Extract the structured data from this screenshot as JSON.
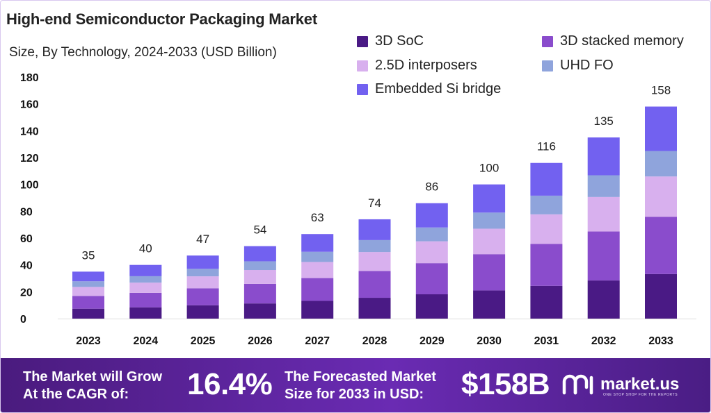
{
  "header": {
    "title": "High-end Semiconductor Packaging Market",
    "subtitle": "Size, By Technology, 2024-2033 (USD Billion)"
  },
  "colors": {
    "3d_soc": "#4a1a85",
    "3d_stacked_memory": "#8a4ccc",
    "interposers": "#d8b0ee",
    "uhd_fo": "#8fa4dc",
    "embedded_si_bridge": "#7261f0"
  },
  "chart_data": {
    "type": "bar",
    "stacked": true,
    "title": "High-end Semiconductor Packaging Market",
    "subtitle": "Size, By Technology, 2024-2033 (USD Billion)",
    "categories": [
      "2023",
      "2024",
      "2025",
      "2026",
      "2027",
      "2028",
      "2029",
      "2030",
      "2031",
      "2032",
      "2033"
    ],
    "totals": [
      35,
      40,
      47,
      54,
      63,
      74,
      86,
      100,
      116,
      135,
      158
    ],
    "series": [
      {
        "name": "3D SoC",
        "color": "#4a1a85",
        "values": [
          7.4,
          8.4,
          9.9,
          11.3,
          13.2,
          15.5,
          18.1,
          21.0,
          24.4,
          28.4,
          33.2
        ]
      },
      {
        "name": "3D stacked memory",
        "color": "#8a4ccc",
        "values": [
          9.5,
          10.8,
          12.7,
          14.6,
          17.0,
          20.0,
          23.2,
          27.0,
          31.3,
          36.5,
          42.7
        ]
      },
      {
        "name": "2.5D interposers",
        "color": "#d8b0ee",
        "values": [
          6.7,
          7.6,
          8.9,
          10.3,
          12.0,
          14.1,
          16.3,
          19.0,
          22.0,
          25.7,
          30.0
        ]
      },
      {
        "name": "UHD FO",
        "color": "#8fa4dc",
        "values": [
          4.2,
          4.8,
          5.6,
          6.5,
          7.6,
          8.9,
          10.3,
          12.0,
          13.9,
          16.2,
          19.0
        ]
      },
      {
        "name": "Embedded Si bridge",
        "color": "#7261f0",
        "values": [
          7.2,
          8.4,
          9.9,
          11.3,
          13.2,
          15.5,
          18.1,
          21.0,
          24.4,
          28.2,
          33.1
        ]
      }
    ],
    "yticks": [
      "0",
      "20",
      "40",
      "60",
      "80",
      "100",
      "120",
      "140",
      "160",
      "180"
    ],
    "ylim": [
      0,
      180
    ],
    "legend": "top-right",
    "grid": false
  },
  "legend": [
    {
      "label": "3D SoC"
    },
    {
      "label": "3D stacked memory"
    },
    {
      "label": "2.5D interposers"
    },
    {
      "label": "UHD FO"
    },
    {
      "label": "Embedded Si bridge"
    }
  ],
  "footer": {
    "cagr_label_line1": "The Market will Grow",
    "cagr_label_line2": "At the CAGR of:",
    "cagr_value": "16.4%",
    "forecast_label_line1": "The Forecasted Market",
    "forecast_label_line2": "Size for 2033 in USD:",
    "forecast_value": "$158B",
    "brand": "market.us",
    "brand_tagline": "ONE STOP SHOP FOR THE REPORTS"
  }
}
